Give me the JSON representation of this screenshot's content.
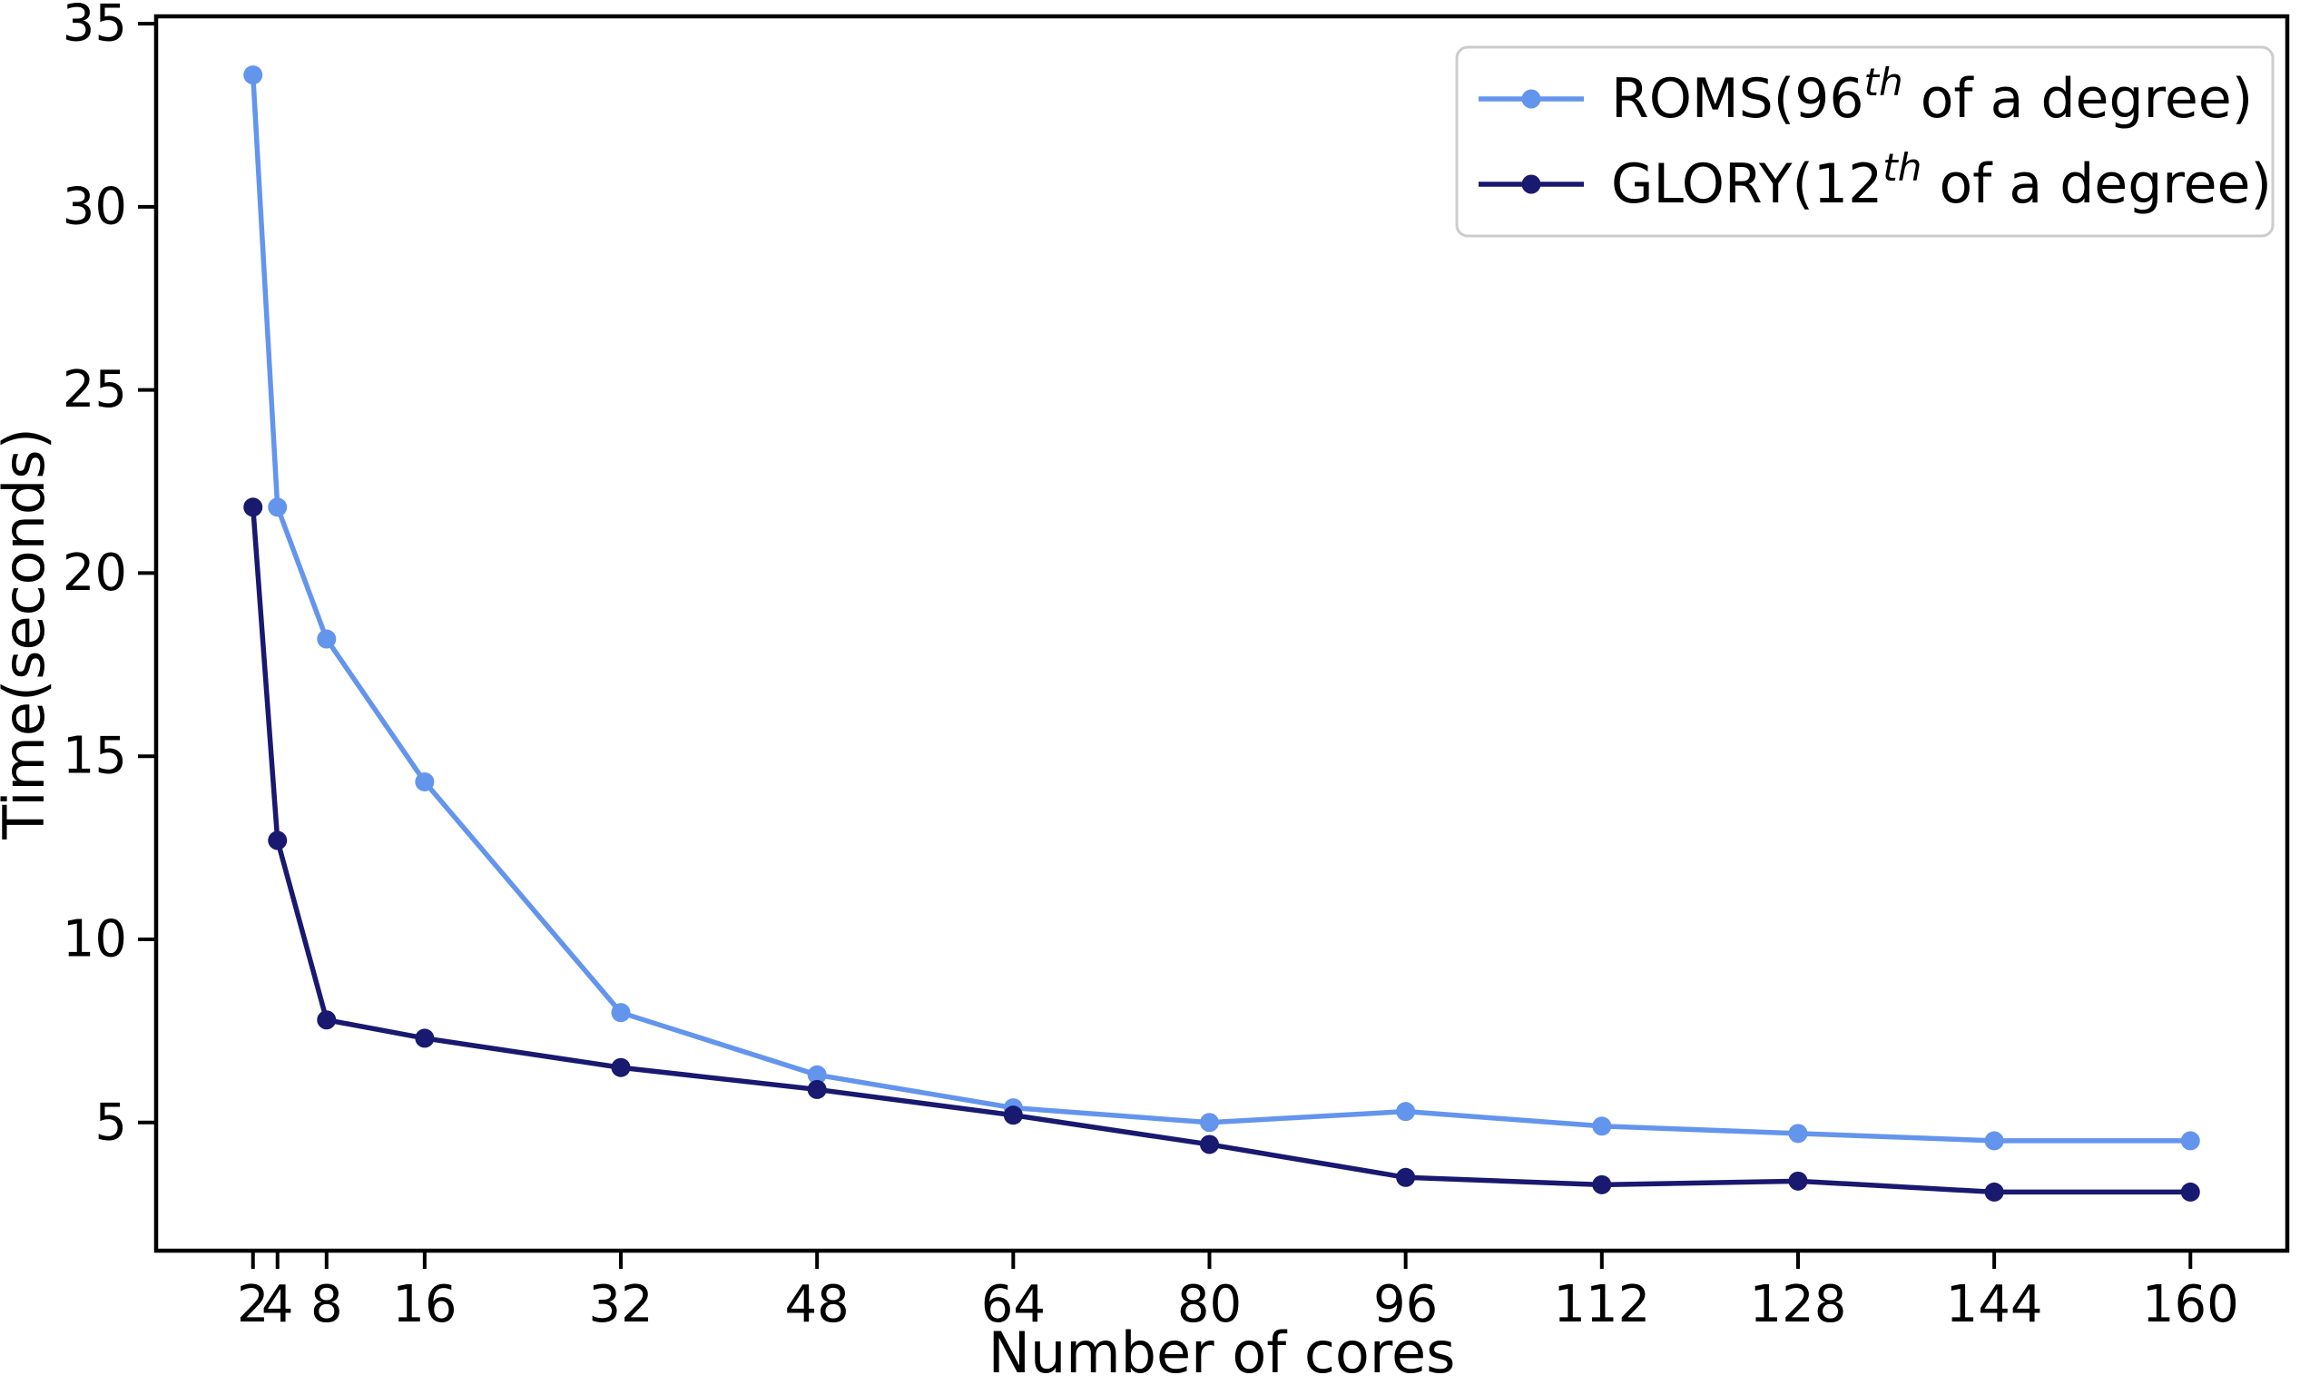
{
  "figure": {
    "background": "#ffffff",
    "axis_color": "#000000"
  },
  "chart_data": {
    "type": "line",
    "title": "",
    "xlabel": "Number of cores",
    "ylabel": "Time(seconds)",
    "x": [
      2,
      4,
      8,
      16,
      32,
      48,
      64,
      80,
      96,
      112,
      128,
      144,
      160
    ],
    "xticklabels": [
      "2",
      "4",
      "8",
      "16",
      "32",
      "48",
      "64",
      "80",
      "96",
      "112",
      "128",
      "144",
      "160"
    ],
    "yticks": [
      5,
      10,
      15,
      20,
      25,
      30,
      35
    ],
    "xlim": [
      -5.9,
      167.9
    ],
    "ylim": [
      1.5,
      35.2
    ],
    "grid": false,
    "marker": "o",
    "legend": {
      "position": "upper right",
      "border_color": "#cccccc",
      "background": "#ffffff"
    },
    "series": [
      {
        "name": "ROMS(96th of a degree)",
        "label_parts": {
          "base": "ROMS(96",
          "sup": "th",
          "rest": " of a degree)"
        },
        "color": "#6495ED",
        "values": [
          33.6,
          21.8,
          18.2,
          14.3,
          8.0,
          6.3,
          5.4,
          5.0,
          5.3,
          4.9,
          4.7,
          4.5,
          4.5
        ]
      },
      {
        "name": "GLORY(12th of a degree)",
        "label_parts": {
          "base": "GLORY(12",
          "sup": "th",
          "rest": " of a degree)"
        },
        "color": "#191970",
        "values": [
          21.8,
          12.7,
          7.8,
          7.3,
          6.5,
          5.9,
          5.2,
          4.4,
          3.5,
          3.3,
          3.4,
          3.1,
          3.1
        ]
      }
    ]
  }
}
